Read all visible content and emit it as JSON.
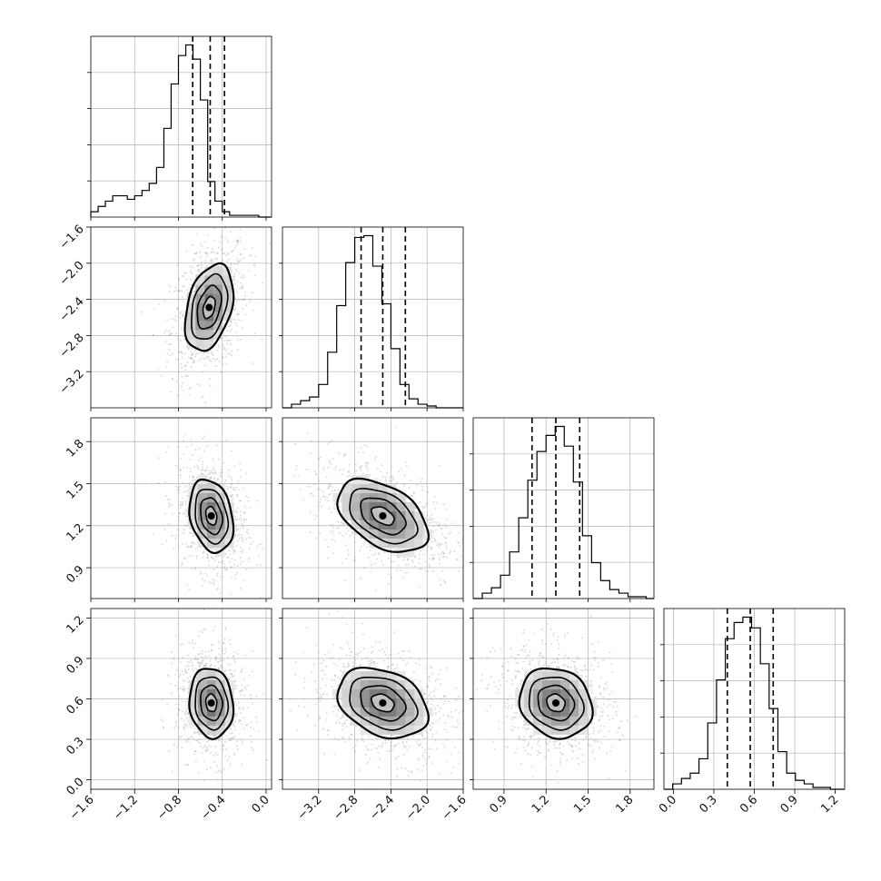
{
  "chart_data": {
    "type": "corner",
    "parameters": [
      {
        "id": "p1",
        "range": [
          -1.6,
          0.05
        ],
        "ticks": [
          "-1.6",
          "-1.2",
          "-0.8",
          "-0.4",
          "0.0"
        ],
        "tick_values": [
          -1.6,
          -1.2,
          -0.8,
          -0.4,
          0.0
        ],
        "quantiles": [
          -0.67,
          -0.51,
          -0.38
        ],
        "hist_edges": [
          -1.6,
          -1.533,
          -1.467,
          -1.4,
          -1.333,
          -1.267,
          -1.2,
          -1.133,
          -1.067,
          -1.0,
          -0.933,
          -0.867,
          -0.8,
          -0.733,
          -0.667,
          -0.6,
          -0.533,
          -0.467,
          -0.4,
          -0.333,
          -0.267,
          -0.2,
          -0.133,
          -0.067,
          0.0,
          0.05
        ],
        "hist_counts": [
          3,
          6,
          9,
          12,
          12,
          10,
          12,
          15,
          19,
          28,
          50,
          75,
          91,
          97,
          89,
          66,
          20,
          9,
          3,
          1,
          1,
          1,
          1,
          0,
          0
        ]
      },
      {
        "id": "p2",
        "range": [
          -3.6,
          -1.6
        ],
        "ticks": [
          "-3.2",
          "-2.8",
          "-2.4",
          "-2.0",
          "-1.6"
        ],
        "tick_values": [
          -3.2,
          -2.8,
          -2.4,
          -2.0,
          -1.6
        ],
        "quantiles": [
          -2.73,
          -2.49,
          -2.24
        ],
        "hist_edges": [
          -3.6,
          -3.5,
          -3.4,
          -3.3,
          -3.2,
          -3.1,
          -3.0,
          -2.9,
          -2.8,
          -2.7,
          -2.6,
          -2.5,
          -2.4,
          -2.3,
          -2.2,
          -2.1,
          -2.0,
          -1.9,
          -1.8,
          -1.7,
          -1.6
        ],
        "hist_counts": [
          0,
          2,
          4,
          6,
          13,
          31,
          57,
          81,
          95,
          96,
          79,
          58,
          33,
          13,
          5,
          2,
          1,
          0,
          0,
          0
        ]
      },
      {
        "id": "p3",
        "range": [
          0.68,
          1.97
        ],
        "ticks": [
          "0.9",
          "1.2",
          "1.5",
          "1.8"
        ],
        "tick_values": [
          0.9,
          1.2,
          1.5,
          1.8
        ],
        "quantiles": [
          1.1,
          1.27,
          1.44
        ],
        "hist_edges": [
          0.68,
          0.745,
          0.81,
          0.875,
          0.94,
          1.005,
          1.07,
          1.135,
          1.2,
          1.265,
          1.33,
          1.395,
          1.46,
          1.525,
          1.59,
          1.655,
          1.72,
          1.785,
          1.85,
          1.915,
          1.97
        ],
        "hist_counts": [
          0,
          3,
          6,
          13,
          26,
          45,
          66,
          82,
          91,
          96,
          85,
          65,
          35,
          20,
          10,
          5,
          3,
          1,
          1,
          0
        ]
      },
      {
        "id": "p4",
        "range": [
          -0.07,
          1.27
        ],
        "ticks": [
          "0.0",
          "0.3",
          "0.6",
          "0.9",
          "1.2"
        ],
        "tick_values": [
          0.0,
          0.3,
          0.6,
          0.9,
          1.2
        ],
        "quantiles": [
          0.4,
          0.57,
          0.74
        ],
        "hist_edges": [
          -0.07,
          -0.005,
          0.06,
          0.125,
          0.19,
          0.255,
          0.32,
          0.385,
          0.45,
          0.515,
          0.58,
          0.645,
          0.71,
          0.775,
          0.84,
          0.905,
          0.97,
          1.035,
          1.1,
          1.165,
          1.23,
          1.27
        ],
        "hist_counts": [
          0,
          3,
          6,
          9,
          17,
          37,
          61,
          84,
          93,
          96,
          90,
          70,
          45,
          21,
          9,
          5,
          3,
          1,
          1,
          0,
          0
        ]
      }
    ],
    "joint": [
      {
        "x": "p1",
        "y": "p2",
        "mean": [
          -0.52,
          -2.49
        ],
        "sd": [
          0.11,
          0.24
        ],
        "rho": 0.35
      },
      {
        "x": "p1",
        "y": "p3",
        "mean": [
          -0.5,
          1.27
        ],
        "sd": [
          0.1,
          0.13
        ],
        "rho": -0.25
      },
      {
        "x": "p2",
        "y": "p3",
        "mean": [
          -2.49,
          1.27
        ],
        "sd": [
          0.25,
          0.13
        ],
        "rho": -0.45
      },
      {
        "x": "p1",
        "y": "p4",
        "mean": [
          -0.5,
          0.57
        ],
        "sd": [
          0.1,
          0.13
        ],
        "rho": -0.1
      },
      {
        "x": "p2",
        "y": "p4",
        "mean": [
          -2.49,
          0.57
        ],
        "sd": [
          0.25,
          0.13
        ],
        "rho": -0.3
      },
      {
        "x": "p3",
        "y": "p4",
        "mean": [
          1.27,
          0.57
        ],
        "sd": [
          0.13,
          0.13
        ],
        "rho": -0.15
      }
    ],
    "contour_levels": [
      0.118,
      0.393,
      0.675,
      0.864
    ],
    "grid": true,
    "colors": {
      "line": "#000000",
      "grid": "#b0b0b0",
      "points": "#9a9a9a"
    }
  }
}
